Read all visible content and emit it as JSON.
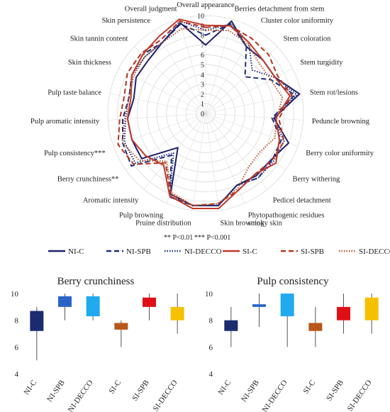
{
  "chart_data": [
    {
      "type": "radar",
      "rmin": 0,
      "rmax": 10,
      "ticks": [
        "0",
        "1",
        "2",
        "3",
        "4",
        "5",
        "6",
        "7",
        "8",
        "9",
        "10"
      ],
      "axes": [
        "Overall appearance",
        "Berries detachment from stem",
        "Cluster color uniformity",
        "Stem coloration",
        "Stem turgidity",
        "Stem rot/lesions",
        "Peduncle browning",
        "Berry color uniformity",
        "Berry withering",
        "Pedicel detachment",
        "Phytopathogenic residues/smoky skin",
        "Skin browning",
        "Pruine distribution",
        "Pulp browning",
        "Aromatic intensity",
        "Berry crunchiness**",
        "Pulp consistency***",
        "Pulp aromatic intensity",
        "Pulp taste balance",
        "Skin thickness",
        "Skin tannin content",
        "Skin persistence",
        "Overall judgment"
      ],
      "series": [
        {
          "name": "NI-C",
          "color": "#1f1f6b",
          "dash": "solid",
          "values": [
            7.0,
            9.8,
            8.0,
            8.0,
            8.0,
            9.8,
            7.0,
            9.0,
            8.2,
            8.2,
            8.0,
            9.5,
            9.5,
            9.0,
            4.5,
            8.0,
            8.0,
            8.0,
            7.5,
            8.0,
            8.0,
            8.5,
            9.6
          ]
        },
        {
          "name": "NI-SPB",
          "color": "#1f2e7a",
          "dash": "dashed",
          "values": [
            8.0,
            9.5,
            8.0,
            5.5,
            7.5,
            9.3,
            6.8,
            8.2,
            8.3,
            8.5,
            8.0,
            9.5,
            9.5,
            9.3,
            5.5,
            9.3,
            9.0,
            8.5,
            8.0,
            8.5,
            8.8,
            8.5,
            9.5
          ]
        },
        {
          "name": "NI-DECCO",
          "color": "#1a2f80",
          "dash": "dotted",
          "values": [
            8.5,
            9.5,
            8.5,
            6.5,
            8.0,
            9.5,
            7.0,
            8.5,
            8.5,
            8.5,
            8.0,
            9.5,
            9.5,
            9.2,
            5.2,
            8.8,
            8.8,
            8.2,
            8.0,
            8.5,
            8.5,
            8.5,
            9.8
          ]
        },
        {
          "name": "SI-C",
          "color": "#c0392b",
          "dash": "solid",
          "values": [
            9.0,
            9.3,
            8.5,
            8.0,
            8.0,
            8.8,
            7.2,
            8.0,
            8.8,
            8.0,
            8.5,
            9.8,
            9.8,
            9.2,
            6.8,
            7.5,
            8.0,
            8.0,
            7.8,
            8.5,
            8.8,
            9.2,
            10.0
          ]
        },
        {
          "name": "SI-SPB",
          "color": "#b5341f",
          "dash": "dashed",
          "values": [
            8.8,
            9.3,
            9.0,
            8.8,
            8.3,
            9.0,
            7.5,
            8.5,
            8.3,
            8.0,
            8.5,
            9.3,
            9.5,
            9.0,
            6.5,
            9.0,
            9.5,
            8.8,
            8.5,
            9.0,
            9.0,
            8.8,
            9.8
          ]
        },
        {
          "name": "SI-DECCO",
          "color": "#b5562d",
          "dash": "dotted",
          "values": [
            8.5,
            8.8,
            8.3,
            7.5,
            7.5,
            8.0,
            7.3,
            7.5,
            6.8,
            7.0,
            8.3,
            9.3,
            9.5,
            8.8,
            6.3,
            8.3,
            9.0,
            8.3,
            8.0,
            8.3,
            8.5,
            8.5,
            9.0
          ]
        }
      ],
      "annotation_1": "** P<0.01",
      "annotation_2": "*** P<0.001"
    },
    {
      "type": "box",
      "title": "Berry crunchiness",
      "ylim": [
        4,
        10
      ],
      "yticks": [
        "4",
        "6",
        "8",
        "10"
      ],
      "categories": [
        "NI-C",
        "NI-SPB",
        "NI-DECCO",
        "SI-C",
        "SI-SPB",
        "SI-DECCO"
      ],
      "colors": [
        "#1a2c6e",
        "#2a64c8",
        "#21aaf0",
        "#b8571a",
        "#e00f16",
        "#f5c000"
      ],
      "boxes": [
        {
          "min": 5.0,
          "q1": 7.2,
          "q3": 8.7,
          "max": 9.0
        },
        {
          "min": 8.0,
          "q1": 9.0,
          "q3": 9.8,
          "max": 10.0
        },
        {
          "min": 8.0,
          "q1": 8.3,
          "q3": 9.8,
          "max": 10.0
        },
        {
          "min": 6.0,
          "q1": 7.3,
          "q3": 7.8,
          "max": 8.0
        },
        {
          "min": 8.0,
          "q1": 9.0,
          "q3": 9.7,
          "max": 10.0
        },
        {
          "min": 7.0,
          "q1": 8.0,
          "q3": 9.0,
          "max": 10.0
        }
      ]
    },
    {
      "type": "box",
      "title": "Pulp consistency",
      "ylim": [
        4,
        10
      ],
      "yticks": [
        "4",
        "6",
        "8",
        "10"
      ],
      "categories": [
        "NI-C",
        "NI-SPB",
        "NI-DECCO",
        "SI-C",
        "SI-SPB",
        "SI-DECCO"
      ],
      "colors": [
        "#1a2c6e",
        "#2a64c8",
        "#21aaf0",
        "#b8571a",
        "#e00f16",
        "#f5c000"
      ],
      "boxes": [
        {
          "min": 6.0,
          "q1": 7.2,
          "q3": 8.0,
          "max": 9.0
        },
        {
          "min": 7.5,
          "q1": 9.0,
          "q3": 9.2,
          "max": 10.0
        },
        {
          "min": 6.0,
          "q1": 8.3,
          "q3": 10.0,
          "max": 10.0
        },
        {
          "min": 6.0,
          "q1": 7.2,
          "q3": 7.8,
          "max": 9.0
        },
        {
          "min": 7.0,
          "q1": 8.0,
          "q3": 9.0,
          "max": 10.0
        },
        {
          "min": 7.0,
          "q1": 8.0,
          "q3": 9.7,
          "max": 10.0
        }
      ]
    }
  ]
}
